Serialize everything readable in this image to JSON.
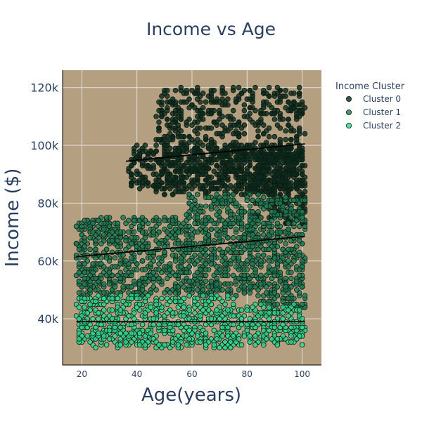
{
  "chart_data": {
    "type": "scatter",
    "title": "Income vs Age",
    "xlabel": "Age(years)",
    "ylabel": "Income ($)",
    "xlim": [
      13,
      107
    ],
    "ylim": [
      24000,
      126000
    ],
    "x_ticks": [
      20,
      40,
      60,
      80,
      100
    ],
    "y_ticks": [
      40000,
      60000,
      80000,
      100000,
      120000
    ],
    "x_tick_labels": [
      "20",
      "40",
      "60",
      "80",
      "100"
    ],
    "y_tick_labels": [
      "40k",
      "60k",
      "80k",
      "100k",
      "120k"
    ],
    "grid": true,
    "plot_background": "#b59f81",
    "legend_title": "Income Cluster",
    "legend_position": "top-right",
    "series": [
      {
        "name": "Cluster 0",
        "color": "#0b2b1d",
        "regions": [
          {
            "x": [
              37,
              97
            ],
            "y": [
              85000,
              100000
            ]
          },
          {
            "x": [
              47,
              101
            ],
            "y": [
              83000,
              120000
            ]
          },
          {
            "x": [
              83,
              101
            ],
            "y": [
              73000,
              100000
            ]
          }
        ],
        "trend": {
          "x": [
            36,
            101
          ],
          "y": [
            94500,
            100500
          ]
        }
      },
      {
        "name": "Cluster 1",
        "color": "#1e7a52",
        "regions": [
          {
            "x": [
              18,
              58
            ],
            "y": [
              48000,
              75000
            ]
          },
          {
            "x": [
              58,
              85
            ],
            "y": [
              48000,
              83000
            ]
          },
          {
            "x": [
              85,
              101
            ],
            "y": [
              42000,
              82000
            ]
          }
        ],
        "trend": {
          "x": [
            18,
            101
          ],
          "y": [
            61500,
            68500
          ]
        }
      },
      {
        "name": "Cluster 2",
        "color": "#2fd68d",
        "regions": [
          {
            "x": [
              18,
              78
            ],
            "y": [
              30000,
              48000
            ]
          },
          {
            "x": [
              78,
              101
            ],
            "y": [
              31000,
              45000
            ]
          }
        ],
        "trend": {
          "x": [
            18,
            101
          ],
          "y": [
            39000,
            39000
          ]
        }
      }
    ]
  }
}
